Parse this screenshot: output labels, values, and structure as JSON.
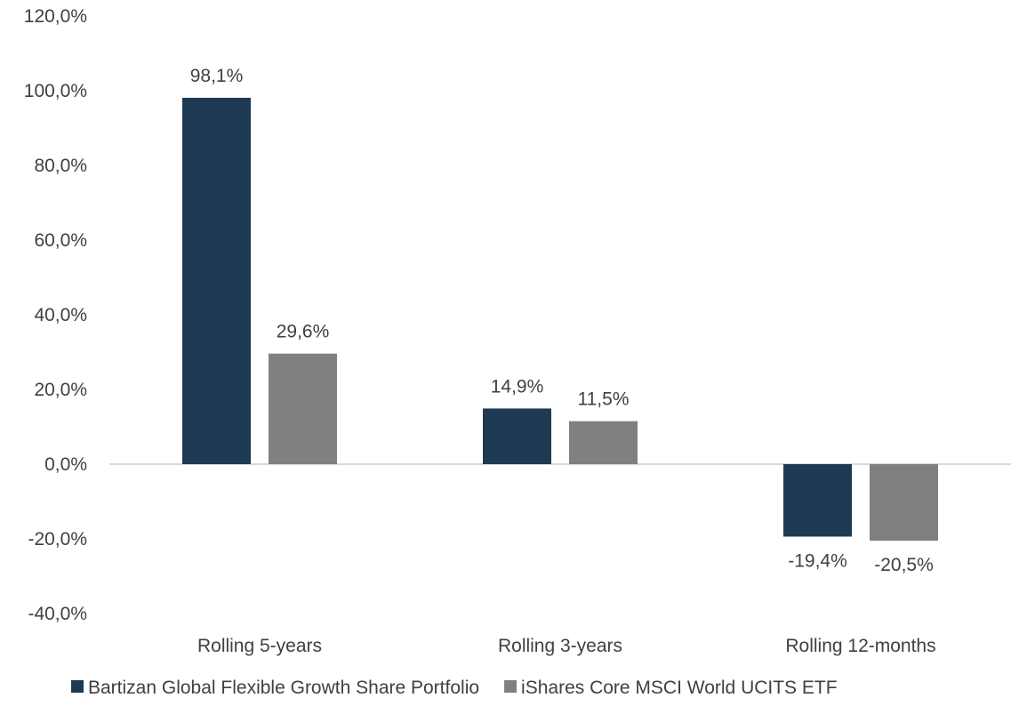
{
  "chart_data": {
    "type": "bar",
    "title": "",
    "xlabel": "",
    "ylabel": "",
    "categories": [
      "Rolling 5-years",
      "Rolling 3-years",
      "Rolling 12-months"
    ],
    "series": [
      {
        "name": "Bartizan Global Flexible Growth Share Portfolio",
        "color": "#1e3a52",
        "values": [
          98.1,
          14.9,
          -19.4
        ],
        "labels": [
          "98,1%",
          "14,9%",
          "-19,4%"
        ]
      },
      {
        "name": "iShares Core MSCI World UCITS ETF",
        "color": "#808080",
        "values": [
          29.6,
          11.5,
          -20.5
        ],
        "labels": [
          "29,6%",
          "11,5%",
          "-20,5%"
        ]
      }
    ],
    "ylim": [
      -40,
      120
    ],
    "yticks": [
      -40,
      -20,
      0,
      20,
      40,
      60,
      80,
      100,
      120
    ],
    "ytick_labels": [
      "-40,0%",
      "-20,0%",
      "0,0%",
      "20,0%",
      "40,0%",
      "60,0%",
      "80,0%",
      "100,0%",
      "120,0%"
    ],
    "grid": false,
    "legend_position": "bottom"
  }
}
